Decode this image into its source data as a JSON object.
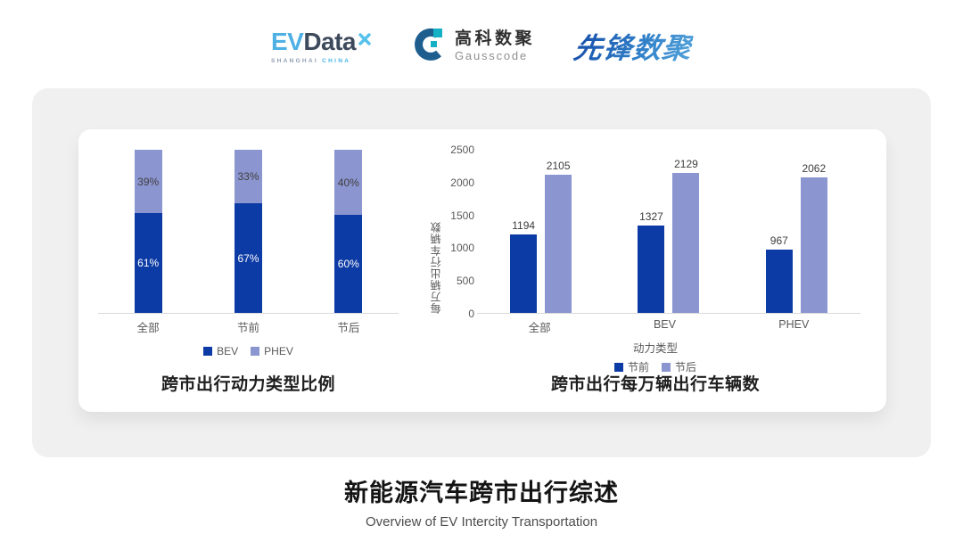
{
  "header": {
    "evdata_logo": {
      "ev": "EV",
      "data": "Data",
      "sub_left": "SHANGHAI",
      "sub_right": "CHINA"
    },
    "gausscode_logo": {
      "cn_name": "高科数聚",
      "en_name": "Gausscode"
    },
    "xianfeng_logo": {
      "name": "先锋数聚"
    }
  },
  "colors": {
    "bar_dark_blue": "#0d3ba5",
    "bar_light_blue": "#8b95cf",
    "axis_line": "#d9d9d9",
    "panel_gray": "#f0f0f1",
    "evdata_blue": "#4fb0e4",
    "evdata_slate": "#3d4a5c",
    "gauss_navy": "#1d5e8f",
    "gauss_cyan": "#14b0c4",
    "xianfeng_blue": "#2f7ec7"
  },
  "chart_data": [
    {
      "type": "bar",
      "subtype": "stacked-percent",
      "title": "跨市出行动力类型比例",
      "categories": [
        "全部",
        "节前",
        "节后"
      ],
      "series": [
        {
          "name": "BEV",
          "color": "#0d3ba5",
          "values": [
            61,
            67,
            60
          ],
          "unit": "%"
        },
        {
          "name": "PHEV",
          "color": "#8b95cf",
          "values": [
            39,
            33,
            40
          ],
          "unit": "%"
        }
      ],
      "ylim": [
        0,
        100
      ],
      "legend_position": "bottom",
      "grid": false
    },
    {
      "type": "bar",
      "subtype": "grouped",
      "title": "跨市出行每万辆出行车辆数",
      "xlabel": "动力类型",
      "ylabel": "每万辆出行车辆数",
      "categories": [
        "全部",
        "BEV",
        "PHEV"
      ],
      "series": [
        {
          "name": "节前",
          "color": "#0d3ba5",
          "values": [
            1194,
            1327,
            967
          ]
        },
        {
          "name": "节后",
          "color": "#8b95cf",
          "values": [
            2105,
            2129,
            2062
          ]
        }
      ],
      "yticks": [
        0,
        500,
        1000,
        1500,
        2000,
        2500
      ],
      "ylim": [
        0,
        2500
      ],
      "legend_position": "bottom",
      "grid": false
    }
  ],
  "footer": {
    "title": "新能源汽车跨市出行综述",
    "subtitle": "Overview of EV Intercity Transportation"
  }
}
